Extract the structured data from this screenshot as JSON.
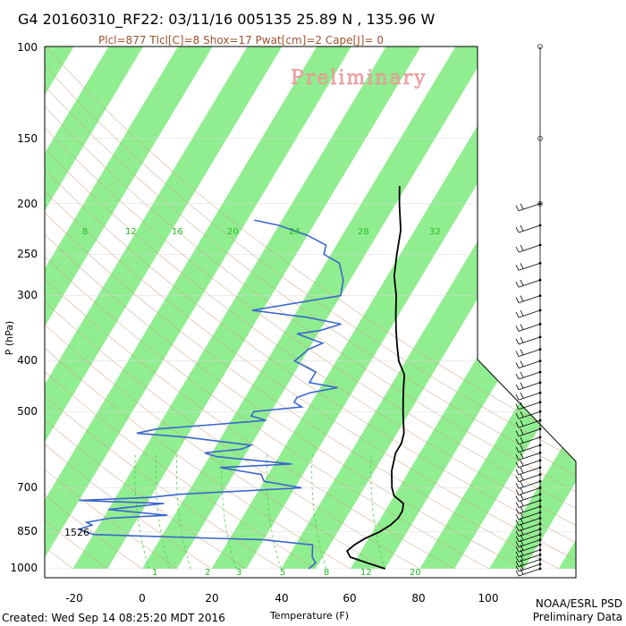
{
  "title": "G4 20160310_RF22: 03/11/16 005135  25.89 N , 135.96 W",
  "subtitle": "Plcl=877 Tlcl[C]=8 Shox=17 Pwat[cm]=2 Cape[J]= 0",
  "watermark": "Preliminary",
  "footer_left": "Created: Wed Sep 14 08:25:20 MDT 2016",
  "footer_right_1": "NOAA/ESRL PSD",
  "footer_right_2": "Preliminary Data",
  "colors": {
    "temp": "#000000",
    "dewpoint": "#3a66cc",
    "band": "#90ee90",
    "dry_adiabat": "#c8a080",
    "mixing_ratio": "#33cc33"
  },
  "chart_data": {
    "type": "skew-T",
    "xlabel": "Temperature (F)",
    "ylabel": "P (hPa)",
    "x_ticks": [
      -20,
      0,
      20,
      40,
      60,
      80,
      100
    ],
    "y_ticks": [
      100,
      150,
      200,
      250,
      300,
      400,
      500,
      700,
      850,
      1000
    ],
    "xlim": [
      -28,
      105
    ],
    "ylim": [
      1000,
      100
    ],
    "mixing_ratio_top_labels": [
      "8",
      "12",
      "16",
      "20",
      "24",
      "28",
      "32"
    ],
    "mixing_ratio_bottom_labels": [
      "1",
      "2",
      "3",
      "5",
      "8",
      "12",
      "20"
    ],
    "annotation": "1526",
    "series": [
      {
        "key": "temperature",
        "points": [
          [
            1000,
            70
          ],
          [
            975,
            64
          ],
          [
            950,
            58
          ],
          [
            925,
            56
          ],
          [
            900,
            57
          ],
          [
            875,
            59
          ],
          [
            850,
            62
          ],
          [
            825,
            64
          ],
          [
            800,
            65
          ],
          [
            775,
            65
          ],
          [
            750,
            64
          ],
          [
            725,
            60
          ],
          [
            700,
            58
          ],
          [
            650,
            55
          ],
          [
            600,
            53
          ],
          [
            575,
            53
          ],
          [
            550,
            52
          ],
          [
            525,
            50
          ],
          [
            500,
            48
          ],
          [
            475,
            46
          ],
          [
            450,
            44
          ],
          [
            425,
            42
          ],
          [
            400,
            38
          ],
          [
            375,
            35
          ],
          [
            350,
            32
          ],
          [
            325,
            29
          ],
          [
            300,
            26
          ],
          [
            275,
            22
          ],
          [
            250,
            19
          ],
          [
            225,
            16
          ],
          [
            200,
            11
          ],
          [
            185,
            8
          ]
        ]
      },
      {
        "key": "dewpoint",
        "points": [
          [
            1000,
            48
          ],
          [
            975,
            49
          ],
          [
            950,
            47
          ],
          [
            925,
            46
          ],
          [
            900,
            45
          ],
          [
            880,
            30
          ],
          [
            860,
            -20
          ],
          [
            840,
            -25
          ],
          [
            825,
            -22
          ],
          [
            815,
            -24
          ],
          [
            800,
            -18
          ],
          [
            790,
            -2
          ],
          [
            770,
            -20
          ],
          [
            750,
            -5
          ],
          [
            740,
            -30
          ],
          [
            730,
            -10
          ],
          [
            720,
            -2
          ],
          [
            700,
            32
          ],
          [
            680,
            20
          ],
          [
            660,
            18
          ],
          [
            640,
            5
          ],
          [
            630,
            25
          ],
          [
            610,
            2
          ],
          [
            600,
            -2
          ],
          [
            590,
            8
          ],
          [
            580,
            10
          ],
          [
            560,
            -10
          ],
          [
            550,
            -25
          ],
          [
            540,
            -20
          ],
          [
            530,
            -5
          ],
          [
            520,
            10
          ],
          [
            510,
            5
          ],
          [
            500,
            5
          ],
          [
            490,
            18
          ],
          [
            480,
            15
          ],
          [
            470,
            15
          ],
          [
            460,
            18
          ],
          [
            450,
            25
          ],
          [
            440,
            16
          ],
          [
            420,
            16
          ],
          [
            400,
            8
          ],
          [
            380,
            10
          ],
          [
            370,
            13
          ],
          [
            355,
            4
          ],
          [
            350,
            10
          ],
          [
            340,
            15
          ],
          [
            330,
            4
          ],
          [
            320,
            -13
          ],
          [
            300,
            10
          ],
          [
            280,
            8
          ],
          [
            260,
            4
          ],
          [
            250,
            -2
          ],
          [
            240,
            -3
          ],
          [
            230,
            -10
          ],
          [
            220,
            -20
          ],
          [
            215,
            -28
          ]
        ]
      }
    ]
  }
}
